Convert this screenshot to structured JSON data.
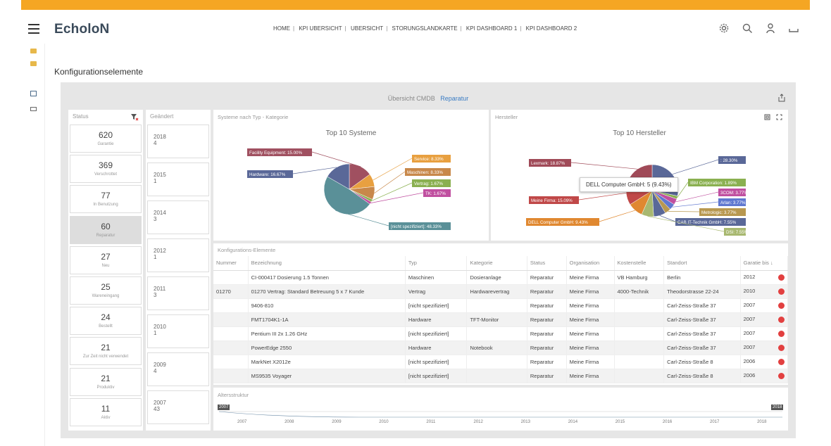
{
  "header": {
    "logo": "EcholoN",
    "nav": [
      "HOME",
      "KPI UBERSICHT",
      "UBERSICHT",
      "STORUNGSLANDKARTE",
      "KPI DASHBOARD 1",
      "KPI DASHBOARD 2"
    ]
  },
  "page": {
    "title": "Konfigurationselemente"
  },
  "panel": {
    "title": "Übersicht CMDB",
    "filter": "Reparatur"
  },
  "status": {
    "header": "Status",
    "items": [
      {
        "n": "620",
        "l": "Garantie"
      },
      {
        "n": "369",
        "l": "Verschrottet"
      },
      {
        "n": "77",
        "l": "In Benutzung"
      },
      {
        "n": "60",
        "l": "Reparatur"
      },
      {
        "n": "27",
        "l": "Neu"
      },
      {
        "n": "25",
        "l": "Wareneingang"
      },
      {
        "n": "24",
        "l": "Bestellt"
      },
      {
        "n": "21",
        "l": "Zur Zeit nicht verwendet"
      },
      {
        "n": "21",
        "l": "Produktiv"
      },
      {
        "n": "11",
        "l": "Aktiv"
      }
    ]
  },
  "changed": {
    "header": "Geändert",
    "items": [
      {
        "y": "2018",
        "c": "4"
      },
      {
        "y": "2015",
        "c": "1"
      },
      {
        "y": "2014",
        "c": "3"
      },
      {
        "y": "2012",
        "c": "1"
      },
      {
        "y": "2011",
        "c": "3"
      },
      {
        "y": "2010",
        "c": "1"
      },
      {
        "y": "2009",
        "c": "4"
      },
      {
        "y": "2007",
        "c": "43"
      }
    ]
  },
  "chart_left": {
    "card_title": "Systeme nach Typ - Kategorie",
    "title": "Top 10 Systeme"
  },
  "chart_right": {
    "card_title": "Hersteller",
    "title": "Top 10 Hersteller",
    "tooltip": "DELL Computer GmbH: 5 (9.43%)"
  },
  "chart_data": [
    {
      "type": "pie",
      "title": "Top 10 Systeme",
      "slices": [
        {
          "label": "Facility Equipment: 15.00%",
          "value": 15.0,
          "color": "#a05060"
        },
        {
          "label": "Service: 8.33%",
          "value": 8.33,
          "color": "#e8a040"
        },
        {
          "label": "Maschinen: 8.33%",
          "value": 8.33,
          "color": "#c8884a"
        },
        {
          "label": "Vertrag: 1.67%",
          "value": 1.67,
          "color": "#8ab050"
        },
        {
          "label": "TK: 1.67%",
          "value": 1.67,
          "color": "#c050a0"
        },
        {
          "label": "[nicht spezifiziert]: 48.33%",
          "value": 48.33,
          "color": "#5a9098"
        },
        {
          "label": "Hardware: 16.67%",
          "value": 16.67,
          "color": "#5a6898"
        }
      ]
    },
    {
      "type": "pie",
      "title": "Top 10 Hersteller",
      "slices": [
        {
          "label": ": 28.30%",
          "value": 28.3,
          "color": "#5a6898"
        },
        {
          "label": "IBM Corporation: 1.89%",
          "value": 1.89,
          "color": "#8ab050"
        },
        {
          "label": "3COM: 3.77%",
          "value": 3.77,
          "color": "#c050a0"
        },
        {
          "label": "Arlan: 3.77%",
          "value": 3.77,
          "color": "#6078d0"
        },
        {
          "label": "Metrologic: 3.77%",
          "value": 3.77,
          "color": "#b89850"
        },
        {
          "label": "CAB IT-Technik GmbH: 7.55%",
          "value": 7.55,
          "color": "#5a6898"
        },
        {
          "label": "DSI: 7.55%",
          "value": 7.55,
          "color": "#a8b870"
        },
        {
          "label": "DELL Computer GmbH: 9.43%",
          "value": 9.43,
          "color": "#e08830"
        },
        {
          "label": "Meine Firma: 15.09%",
          "value": 15.09,
          "color": "#c04848"
        },
        {
          "label": "Lexmark: 18.87%",
          "value": 18.87,
          "color": "#a04a58"
        }
      ]
    }
  ],
  "table": {
    "title": "Konfigurations-Elemente",
    "cols": [
      "Nummer",
      "Bezeichnung",
      "Typ",
      "Kategorie",
      "Status",
      "Organisation",
      "Kostenstelle",
      "Standort",
      "Garatie bis"
    ],
    "rows": [
      [
        "",
        "CI-000417 Dosierung 1.5 Tonnen",
        "Maschinen",
        "Dosieranlage",
        "Reparatur",
        "Meine Firma",
        "VB Hamburg",
        "Berlin",
        "2012"
      ],
      [
        "01270",
        "01270 Vertrag: Standard Betreuung 5 x 7 Kunde",
        "Vertrag",
        "Hardwarevertrag",
        "Reparatur",
        "Meine Firma",
        "4000-Technik",
        "Theodorstrasse 22-24",
        "2010"
      ],
      [
        "",
        "9406-810",
        "[nicht spezifiziert]",
        "",
        "Reparatur",
        "Meine Firma",
        "",
        "Carl-Zeiss-Straße 37",
        "2007"
      ],
      [
        "",
        "FMT1704K1-1A",
        "Hardware",
        "TFT-Monitor",
        "Reparatur",
        "Meine Firma",
        "",
        "Carl-Zeiss-Straße 37",
        "2007"
      ],
      [
        "",
        "Pentium III 2x 1.26 GHz",
        "[nicht spezifiziert]",
        "",
        "Reparatur",
        "Meine Firma",
        "",
        "Carl-Zeiss-Straße 37",
        "2007"
      ],
      [
        "",
        "PowerEdge 2550",
        "Hardware",
        "Notebook",
        "Reparatur",
        "Meine Firma",
        "",
        "Carl-Zeiss-Straße 37",
        "2007"
      ],
      [
        "",
        "MarkNet X2012e",
        "[nicht spezifiziert]",
        "",
        "Reparatur",
        "Meine Firma",
        "",
        "Carl-Zeiss-Straße 8",
        "2006"
      ],
      [
        "",
        "MS9535 Voyager",
        "[nicht spezifiziert]",
        "",
        "Reparatur",
        "Meine Firma",
        "",
        "Carl-Zeiss-Straße 8",
        "2006"
      ]
    ]
  },
  "timeline": {
    "title": "Altersstruktur",
    "start": "2007",
    "end": "2018",
    "years": [
      "2007",
      "2008",
      "2009",
      "2010",
      "2011",
      "2012",
      "2013",
      "2014",
      "2015",
      "2016",
      "2017",
      "2018"
    ]
  }
}
